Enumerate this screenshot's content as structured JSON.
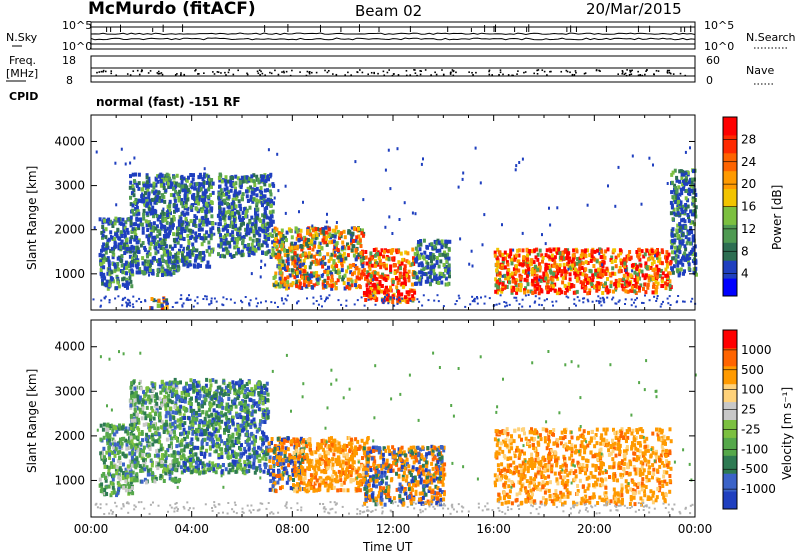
{
  "header": {
    "station": "McMurdo (fitACF)",
    "beam": "Beam 02",
    "date": "20/Mar/2015",
    "mode": "normal (fast) -151 RF"
  },
  "noise_panel": {
    "left_label": "N.Sky",
    "right_label": "N.Search",
    "left_ticks": [
      "10^5",
      "10^0"
    ],
    "right_ticks": [
      "10^5",
      "10^0"
    ]
  },
  "freq_panel": {
    "left_label_line1": "Freq.",
    "left_label_line2": "[MHz]",
    "left_ticks": [
      "18",
      "8"
    ],
    "right_label": "Nave",
    "right_ticks": [
      "60",
      "0"
    ],
    "cpid_label": "CPID"
  },
  "chart_data": [
    {
      "type": "heatmap",
      "name": "power",
      "ylabel": "Slant Range [km]",
      "yticks": [
        "4000",
        "3000",
        "2000",
        "1000"
      ],
      "ylim": [
        180,
        4600
      ],
      "colorbar_label": "Power [dB]",
      "colorbar_ticks": [
        "28",
        "24",
        "20",
        "16",
        "12",
        "8",
        "4"
      ],
      "colorbar_colors": [
        "#0000ff",
        "#1f3fbf",
        "#2d6e52",
        "#4f9a52",
        "#7cc040",
        "#f2c400",
        "#ff9a00",
        "#ff6400",
        "#ff2a00",
        "#ff0000"
      ],
      "regions": [
        {
          "t": [
            0.3,
            1.6
          ],
          "r": [
            700,
            2300
          ],
          "level": "mid"
        },
        {
          "t": [
            1.5,
            3.5
          ],
          "r": [
            1000,
            3300
          ],
          "level": "mid"
        },
        {
          "t": [
            2.3,
            3.0
          ],
          "r": [
            250,
            500
          ],
          "level": "high"
        },
        {
          "t": [
            3.5,
            4.8
          ],
          "r": [
            1200,
            3300
          ],
          "level": "mid"
        },
        {
          "t": [
            5.0,
            7.2
          ],
          "r": [
            1400,
            3300
          ],
          "level": "mid"
        },
        {
          "t": [
            7.2,
            10.8
          ],
          "r": [
            700,
            2100
          ],
          "level": "high"
        },
        {
          "t": [
            10.8,
            12.8
          ],
          "r": [
            400,
            1600
          ],
          "level": "very high"
        },
        {
          "t": [
            12.8,
            14.2
          ],
          "r": [
            800,
            1800
          ],
          "level": "mid"
        },
        {
          "t": [
            16.0,
            23.0
          ],
          "r": [
            600,
            1600
          ],
          "level": "very high"
        },
        {
          "t": [
            23.0,
            24.0
          ],
          "r": [
            1000,
            3400
          ],
          "level": "mid"
        }
      ]
    },
    {
      "type": "heatmap",
      "name": "velocity",
      "ylabel": "Slant Range [km]",
      "yticks": [
        "4000",
        "3000",
        "2000",
        "1000"
      ],
      "ylim": [
        180,
        4600
      ],
      "xlabel": "Time UT",
      "xticks": [
        "00:00",
        "04:00",
        "08:00",
        "12:00",
        "16:00",
        "20:00",
        "00:00"
      ],
      "xlim": [
        0,
        24
      ],
      "colorbar_label": "Velocity [m s⁻¹]",
      "colorbar_ticks": [
        "1000",
        "500",
        "100",
        "25",
        "-25",
        "-100",
        "-500",
        "-1000"
      ],
      "colorbar_colors": [
        "#1f3fbf",
        "#3b63c8",
        "#2d7a52",
        "#55a84a",
        "#7cc040",
        "#c8c8c8",
        "#ffd27a",
        "#ff9a00",
        "#ff6400",
        "#ff0000"
      ],
      "regions": [
        {
          "t": [
            0.3,
            1.6
          ],
          "r": [
            700,
            2300
          ],
          "level": "green"
        },
        {
          "t": [
            1.5,
            3.5
          ],
          "r": [
            1000,
            3300
          ],
          "level": "green"
        },
        {
          "t": [
            3.5,
            7.0
          ],
          "r": [
            1200,
            3300
          ],
          "level": "green/blue"
        },
        {
          "t": [
            7.0,
            8.5
          ],
          "r": [
            800,
            2000
          ],
          "level": "orange/blue"
        },
        {
          "t": [
            8.0,
            11.0
          ],
          "r": [
            800,
            2000
          ],
          "level": "orange"
        },
        {
          "t": [
            10.8,
            14.0
          ],
          "r": [
            500,
            1800
          ],
          "level": "orange/blue"
        },
        {
          "t": [
            16.0,
            23.0
          ],
          "r": [
            500,
            2200
          ],
          "level": "orange"
        }
      ]
    }
  ],
  "colors": {
    "axis": "#000000",
    "background": "#ffffff",
    "ground_scatter": "#b0b0b0"
  }
}
